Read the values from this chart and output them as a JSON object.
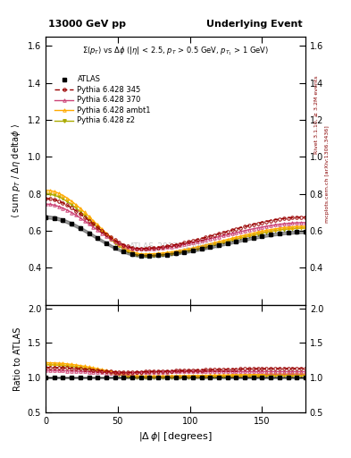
{
  "title_left": "13000 GeV pp",
  "title_right": "Underlying Event",
  "annotation": "Σ(p_{T}) vs Δφ (|η| < 2.5, p_{T} > 0.5 GeV, p_{T1} > 1 GeV)",
  "watermark": "ATLAS_2017_I1509919",
  "ylabel_main": "⟨ sum p_T / Δη deltaφ ⟩",
  "ylabel_ratio": "Ratio to ATLAS",
  "xlabel": "|Δ φ| [degrees]",
  "right_label1": "Rivet 3.1.10, ≥ 3.2M events",
  "right_label2": "mcplots.cern.ch [arXiv:1306.3436]",
  "ylim_main": [
    0.2,
    1.65
  ],
  "ylim_ratio": [
    0.5,
    2.05
  ],
  "yticks_main": [
    0.4,
    0.6,
    0.8,
    1.0,
    1.2,
    1.4,
    1.6
  ],
  "yticks_ratio": [
    0.5,
    1.0,
    1.5,
    2.0
  ],
  "colors": {
    "ATLAS": "#000000",
    "345": "#990000",
    "370": "#cc4477",
    "ambt1": "#ffaa00",
    "z2": "#aaaa00"
  },
  "xmin": 0,
  "xmax": 180
}
